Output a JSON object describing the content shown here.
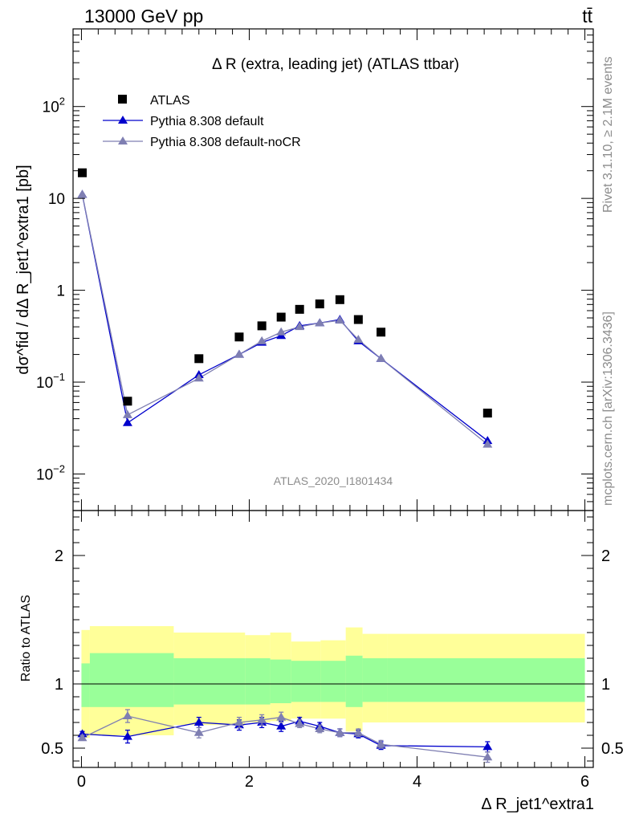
{
  "header": {
    "energy_label": "13000 GeV pp",
    "process_label": "tt̄"
  },
  "side": {
    "rivet_label": "Rivet 3.1.10, ≥ 2.1M events",
    "url_label": "mcplots.cern.ch [arXiv:1306.3436]"
  },
  "chart_data": [
    {
      "type": "scatter",
      "title": "Δ R (extra, leading jet) (ATLAS ttbar)",
      "watermark": "ATLAS_2020_I1801434",
      "ylabel": "dσ^fid / dΔ R_jet1^extra1 [pb]",
      "yscale": "log",
      "xlim": [
        -0.1,
        6.1
      ],
      "ylim": [
        0.004,
        700
      ],
      "ytick_labels": [
        "10^-2",
        "10^-1",
        "1",
        "10",
        "10^2"
      ],
      "legend_position": "top-left",
      "series": [
        {
          "name": "ATLAS",
          "style": "data",
          "color": "#000000",
          "x": [
            0.01,
            0.55,
            1.4,
            1.88,
            2.15,
            2.38,
            2.6,
            2.84,
            3.08,
            3.3,
            3.57,
            4.84
          ],
          "y": [
            19,
            0.062,
            0.18,
            0.31,
            0.41,
            0.51,
            0.62,
            0.71,
            0.79,
            0.48,
            0.35,
            0.046
          ]
        },
        {
          "name": "Pythia 8.308 default",
          "style": "mc",
          "color": "#0000cc",
          "x": [
            0.01,
            0.55,
            1.4,
            1.88,
            2.15,
            2.38,
            2.6,
            2.84,
            3.08,
            3.3,
            3.57,
            4.84
          ],
          "y": [
            11,
            0.036,
            0.12,
            0.2,
            0.27,
            0.32,
            0.41,
            0.44,
            0.48,
            0.28,
            0.18,
            0.023
          ]
        },
        {
          "name": "Pythia 8.308 default-noCR",
          "style": "mc",
          "color": "#7f7fb2",
          "x": [
            0.01,
            0.55,
            1.4,
            1.88,
            2.15,
            2.38,
            2.6,
            2.84,
            3.08,
            3.3,
            3.57,
            4.84
          ],
          "y": [
            11,
            0.044,
            0.11,
            0.2,
            0.28,
            0.35,
            0.4,
            0.44,
            0.47,
            0.29,
            0.18,
            0.021
          ]
        }
      ]
    },
    {
      "type": "scatter",
      "ylabel": "Ratio to ATLAS",
      "xlabel": "Δ R_jet1^extra1",
      "xlim": [
        -0.1,
        6.1
      ],
      "ylim": [
        0.35,
        2.35
      ],
      "x_ticks": [
        0,
        2,
        4,
        6
      ],
      "y_ticks": [
        0.5,
        1,
        2
      ],
      "reference_line": 1,
      "bands": {
        "x_edges": [
          0.0,
          0.1,
          1.1,
          1.95,
          2.25,
          2.5,
          2.85,
          3.15,
          3.35,
          3.65,
          6.0
        ],
        "inner_lo": [
          0.82,
          0.82,
          0.84,
          0.84,
          0.85,
          0.86,
          0.86,
          0.82,
          0.86,
          0.86
        ],
        "inner_hi": [
          1.16,
          1.24,
          1.2,
          1.2,
          1.19,
          1.18,
          1.18,
          1.22,
          1.2,
          1.2
        ],
        "outer_lo": [
          0.58,
          0.6,
          0.68,
          0.7,
          0.71,
          0.73,
          0.73,
          0.63,
          0.7,
          0.7
        ],
        "outer_hi": [
          1.42,
          1.45,
          1.4,
          1.38,
          1.4,
          1.33,
          1.34,
          1.44,
          1.39,
          1.39
        ],
        "inner_color": "#99ff99",
        "outer_color": "#ffff99"
      },
      "series": [
        {
          "name": "Pythia 8.308 default",
          "color": "#0000cc",
          "x": [
            0.01,
            0.55,
            1.4,
            1.88,
            2.15,
            2.38,
            2.6,
            2.84,
            3.08,
            3.3,
            3.57,
            4.84
          ],
          "y": [
            0.61,
            0.59,
            0.7,
            0.68,
            0.7,
            0.67,
            0.71,
            0.67,
            0.62,
            0.61,
            0.52,
            0.51
          ],
          "err": [
            0.02,
            0.05,
            0.04,
            0.04,
            0.04,
            0.04,
            0.03,
            0.03,
            0.03,
            0.03,
            0.03,
            0.04
          ]
        },
        {
          "name": "Pythia 8.308 default-noCR",
          "color": "#7f7fb2",
          "x": [
            0.01,
            0.55,
            1.4,
            1.88,
            2.15,
            2.38,
            2.6,
            2.84,
            3.08,
            3.3,
            3.57,
            4.84
          ],
          "y": [
            0.58,
            0.75,
            0.62,
            0.7,
            0.72,
            0.74,
            0.69,
            0.65,
            0.62,
            0.62,
            0.53,
            0.43
          ],
          "err": [
            0.02,
            0.05,
            0.04,
            0.04,
            0.04,
            0.04,
            0.03,
            0.03,
            0.03,
            0.03,
            0.03,
            0.04
          ]
        }
      ]
    }
  ]
}
